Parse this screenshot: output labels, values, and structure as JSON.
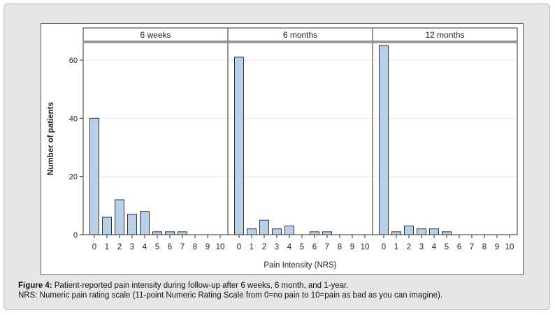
{
  "chart_data": {
    "type": "bar",
    "xlabel": "Pain Intensity (NRS)",
    "ylabel": "Number of patients",
    "ylim": [
      0,
      66
    ],
    "yticks": [
      0,
      20,
      40,
      60
    ],
    "categories": [
      "0",
      "1",
      "2",
      "3",
      "4",
      "5",
      "6",
      "7",
      "8",
      "9",
      "10"
    ],
    "panels": [
      {
        "label": "6 weeks",
        "values": [
          40,
          6,
          12,
          7,
          8,
          1,
          1,
          1,
          0,
          0,
          0
        ]
      },
      {
        "label": "6 months",
        "values": [
          61,
          2,
          5,
          2,
          3,
          0,
          1,
          1,
          0,
          0,
          0
        ]
      },
      {
        "label": "12 months",
        "values": [
          65,
          1,
          3,
          2,
          2,
          1,
          0,
          0,
          0,
          0,
          0
        ]
      }
    ],
    "colors": {
      "bar_fill": "#b8cfe8",
      "bar_stroke": "#333333",
      "grid": "#e8e8e8"
    },
    "grid": true
  },
  "caption": {
    "figure_label": "Figure 4:",
    "line1": " Patient-reported pain intensity during follow-up after 6 weeks, 6 month, and 1-year.",
    "line2": "NRS: Numeric pain rating scale (11-point Numeric Rating Scale from 0=no pain to 10=pain as bad as you can imagine)."
  }
}
